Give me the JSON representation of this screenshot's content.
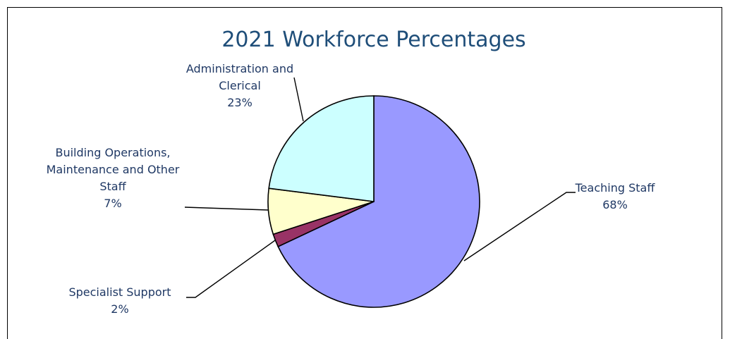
{
  "chart_data": {
    "type": "pie",
    "title": "2021  Workforce Percentages",
    "slices": [
      {
        "label_lines": [
          "Teaching Staff"
        ],
        "percent_label": "68%",
        "value": 68,
        "color": "#9999ff"
      },
      {
        "label_lines": [
          "Specialist Support"
        ],
        "percent_label": "2%",
        "value": 2,
        "color": "#993366"
      },
      {
        "label_lines": [
          "Building Operations,",
          "Maintenance and Other",
          "Staff"
        ],
        "percent_label": "7%",
        "value": 7,
        "color": "#ffffcc"
      },
      {
        "label_lines": [
          "Administration and",
          "Clerical"
        ],
        "percent_label": "23%",
        "value": 23,
        "color": "#ccffff"
      }
    ],
    "start_angle": "12 o'clock",
    "direction": "clockwise",
    "legend": "none"
  }
}
